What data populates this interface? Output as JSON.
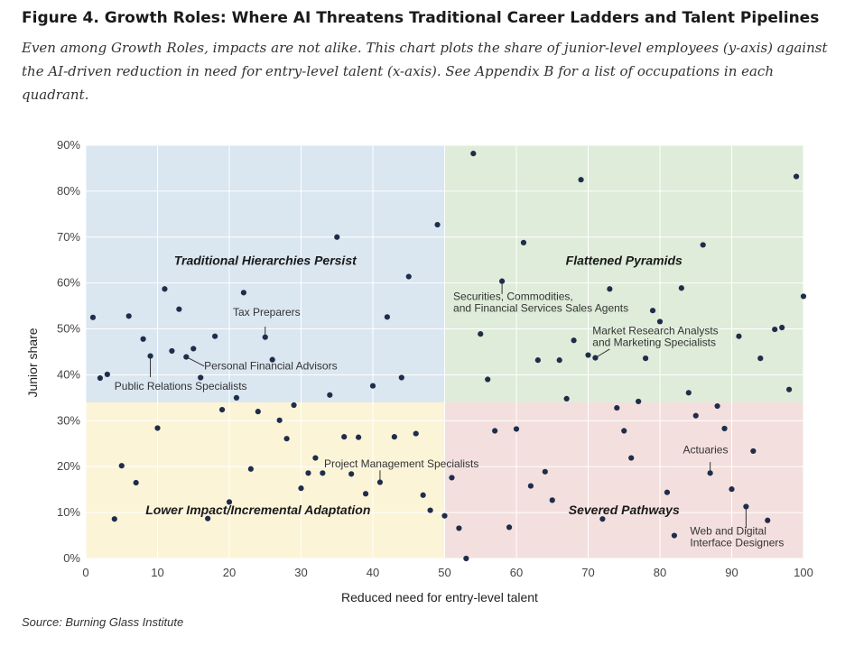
{
  "figure": {
    "title": "Figure 4. Growth Roles: Where AI Threatens Traditional Career Ladders and Talent Pipelines",
    "subtitle": "Even among Growth Roles, impacts are not alike. This chart plots the share of junior-level employees (y-axis) against the AI-driven reduction in need for entry-level talent (x-axis). See Appendix B for a list of occupations in each quadrant.",
    "source": "Source: Burning Glass Institute"
  },
  "chart_data": {
    "type": "scatter",
    "xlabel": "Reduced need for entry-level talent",
    "ylabel": "Junior share",
    "xlim": [
      0,
      100
    ],
    "ylim": [
      0,
      90
    ],
    "x_ticks": [
      "0",
      "10",
      "20",
      "30",
      "40",
      "50",
      "60",
      "70",
      "80",
      "90",
      "100"
    ],
    "y_ticks": [
      "0%",
      "10%",
      "20%",
      "30%",
      "40%",
      "50%",
      "60%",
      "70%",
      "80%",
      "90%"
    ],
    "grid": true,
    "point_color": "#1f2d4a",
    "quadrant_split": {
      "x": 50,
      "y": 34
    },
    "quadrants": [
      {
        "label": "Traditional Hierarchies Persist",
        "color": "#dae6f0",
        "x": [
          0,
          50
        ],
        "y": [
          34,
          90
        ],
        "label_at": [
          25,
          64
        ]
      },
      {
        "label": "Flattened Pyramids",
        "color": "#deecd9",
        "x": [
          50,
          100
        ],
        "y": [
          34,
          90
        ],
        "label_at": [
          75,
          64
        ]
      },
      {
        "label": "Lower Impact/Incremental Adaptation",
        "color": "#fbf4d7",
        "x": [
          0,
          50
        ],
        "y": [
          0,
          34
        ],
        "label_at": [
          24,
          9.6
        ]
      },
      {
        "label": "Severed Pathways",
        "color": "#f3dfdd",
        "x": [
          50,
          100
        ],
        "y": [
          0,
          34
        ],
        "label_at": [
          75,
          9.6
        ]
      }
    ],
    "points": [
      [
        1,
        52.5
      ],
      [
        2,
        39.3
      ],
      [
        3,
        40.1
      ],
      [
        4,
        8.6
      ],
      [
        5,
        20.2
      ],
      [
        6,
        52.8
      ],
      [
        7,
        16.5
      ],
      [
        8,
        47.8
      ],
      [
        9,
        44.1
      ],
      [
        10,
        28.4
      ],
      [
        11,
        58.7
      ],
      [
        12,
        45.2
      ],
      [
        13,
        54.3
      ],
      [
        14,
        43.9
      ],
      [
        15,
        45.7
      ],
      [
        16,
        39.4
      ],
      [
        17,
        8.7
      ],
      [
        18,
        48.4
      ],
      [
        19,
        32.4
      ],
      [
        20,
        12.3
      ],
      [
        21,
        35.0
      ],
      [
        22,
        57.9
      ],
      [
        23,
        19.5
      ],
      [
        24,
        32.0
      ],
      [
        25,
        48.2
      ],
      [
        26,
        43.3
      ],
      [
        27,
        30.1
      ],
      [
        28,
        26.1
      ],
      [
        29,
        33.4
      ],
      [
        30,
        15.3
      ],
      [
        31,
        18.6
      ],
      [
        32,
        21.9
      ],
      [
        33,
        18.6
      ],
      [
        34,
        35.6
      ],
      [
        35,
        70.0
      ],
      [
        36,
        26.5
      ],
      [
        37,
        18.4
      ],
      [
        38,
        26.4
      ],
      [
        39,
        14.1
      ],
      [
        40,
        37.6
      ],
      [
        41,
        16.6
      ],
      [
        42,
        52.6
      ],
      [
        43,
        26.5
      ],
      [
        44,
        39.4
      ],
      [
        45,
        61.4
      ],
      [
        46,
        27.2
      ],
      [
        47,
        13.8
      ],
      [
        48,
        10.5
      ],
      [
        49,
        72.7
      ],
      [
        50,
        9.3
      ],
      [
        51,
        17.6
      ],
      [
        52,
        6.6
      ],
      [
        53,
        0.0
      ],
      [
        54,
        88.2
      ],
      [
        55,
        48.9
      ],
      [
        56,
        39.0
      ],
      [
        57,
        27.8
      ],
      [
        58,
        60.4
      ],
      [
        59,
        6.8
      ],
      [
        60,
        28.2
      ],
      [
        61,
        68.8
      ],
      [
        62,
        15.8
      ],
      [
        63,
        43.2
      ],
      [
        64,
        18.9
      ],
      [
        65,
        12.7
      ],
      [
        66,
        43.2
      ],
      [
        67,
        34.8
      ],
      [
        68,
        47.5
      ],
      [
        69,
        82.5
      ],
      [
        70,
        44.3
      ],
      [
        71,
        43.7
      ],
      [
        72,
        8.6
      ],
      [
        73,
        58.7
      ],
      [
        74,
        32.8
      ],
      [
        75,
        27.8
      ],
      [
        76,
        21.9
      ],
      [
        77,
        34.2
      ],
      [
        78,
        43.6
      ],
      [
        79,
        54.0
      ],
      [
        80,
        51.6
      ],
      [
        81,
        14.4
      ],
      [
        82,
        5.0
      ],
      [
        83,
        58.9
      ],
      [
        84,
        36.1
      ],
      [
        85,
        31.1
      ],
      [
        86,
        68.3
      ],
      [
        87,
        18.6
      ],
      [
        88,
        33.2
      ],
      [
        89,
        28.3
      ],
      [
        90,
        15.1
      ],
      [
        91,
        48.4
      ],
      [
        92,
        11.3
      ],
      [
        93,
        23.4
      ],
      [
        94,
        43.6
      ],
      [
        95,
        8.3
      ],
      [
        96,
        49.9
      ],
      [
        97,
        50.3
      ],
      [
        98,
        36.8
      ],
      [
        99,
        83.2
      ],
      [
        100,
        57.1
      ]
    ],
    "annotations": [
      {
        "lines": [
          "Tax Preparers"
        ],
        "anchor": "start",
        "text_at": [
          20.5,
          52.9
        ],
        "line": [
          25,
          50.5,
          25,
          48.2
        ]
      },
      {
        "lines": [
          "Personal Financial Advisors"
        ],
        "anchor": "start",
        "text_at": [
          16.5,
          41.2
        ],
        "line": [
          14,
          43.9,
          16.5,
          41.9
        ]
      },
      {
        "lines": [
          "Public Relations Specialists"
        ],
        "anchor": "start",
        "text_at": [
          4,
          36.7
        ],
        "line": [
          9,
          44.1,
          9,
          39.5
        ]
      },
      {
        "lines": [
          "Securities, Commodities,",
          "and Financial Services Sales Agents"
        ],
        "anchor": "start",
        "text_at": [
          51.2,
          56.3
        ],
        "line": [
          58,
          60.4,
          58,
          57.6
        ]
      },
      {
        "lines": [
          "Market Research Analysts",
          "and Marketing Specialists"
        ],
        "anchor": "start",
        "text_at": [
          70.6,
          48.8
        ],
        "line": [
          71,
          43.7,
          73,
          45.6
        ]
      },
      {
        "lines": [
          "Project Management Specialists"
        ],
        "anchor": "start",
        "text_at": [
          33.2,
          19.8
        ],
        "line": [
          41,
          16.6,
          41,
          19.2
        ]
      },
      {
        "lines": [
          "Actuaries"
        ],
        "anchor": "start",
        "text_at": [
          83.2,
          22.9
        ],
        "line": [
          87,
          18.6,
          87,
          21.0
        ]
      },
      {
        "lines": [
          "Web and Digital",
          "Interface Designers"
        ],
        "anchor": "start",
        "text_at": [
          84.2,
          5.2
        ],
        "line": [
          92,
          11.3,
          92,
          6.6
        ]
      }
    ]
  }
}
